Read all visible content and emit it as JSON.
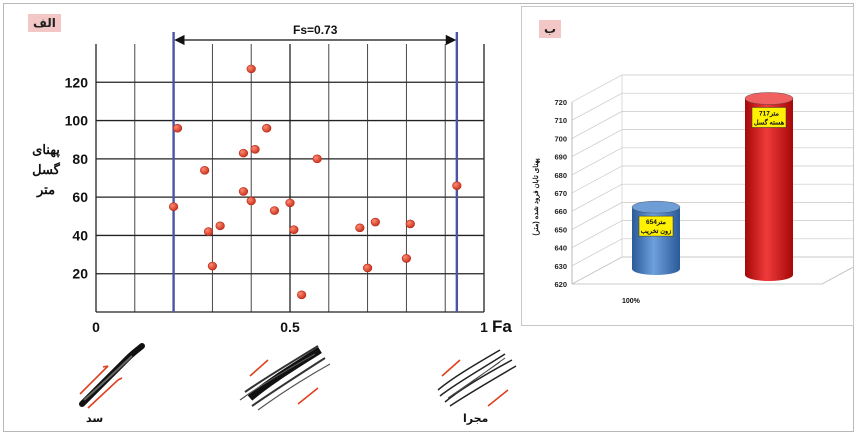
{
  "panel_a_tag": "الف",
  "panel_b_tag": "ب",
  "fs_label": "Fs=0.73",
  "x_axis_label": "Fa",
  "y_axis_label_lines": [
    "پهنای",
    "گسل",
    "متر"
  ],
  "x_tick_labels": [
    "0",
    "0.5",
    "1"
  ],
  "y_tick_labels": [
    "20",
    "40",
    "60",
    "80",
    "100",
    "120"
  ],
  "captions": {
    "left": "سد",
    "right": "مجرا"
  },
  "colors": {
    "points": "#d8402b",
    "fs_lines": "#4a55a8",
    "blue_cyl": "#3f78bf",
    "red_cyl": "#d21414",
    "label_box": "#fff100",
    "tag": "#f4c7c7"
  },
  "chart_data": [
    {
      "type": "scatter",
      "xlabel": "Fa",
      "ylabel": "پهنای گسل متر",
      "xlim": [
        0,
        1.0
      ],
      "ylim": [
        0,
        140
      ],
      "x_ticks": [
        0,
        0.5,
        1
      ],
      "y_ticks": [
        20,
        40,
        60,
        80,
        100,
        120
      ],
      "vlines": [
        0.2,
        0.93
      ],
      "annotation": "Fs=0.73",
      "grid": true,
      "points": [
        {
          "x": 0.2,
          "y": 55
        },
        {
          "x": 0.21,
          "y": 96
        },
        {
          "x": 0.28,
          "y": 74
        },
        {
          "x": 0.29,
          "y": 42
        },
        {
          "x": 0.3,
          "y": 24
        },
        {
          "x": 0.32,
          "y": 45
        },
        {
          "x": 0.38,
          "y": 83
        },
        {
          "x": 0.38,
          "y": 63
        },
        {
          "x": 0.4,
          "y": 58
        },
        {
          "x": 0.4,
          "y": 127
        },
        {
          "x": 0.41,
          "y": 85
        },
        {
          "x": 0.44,
          "y": 96
        },
        {
          "x": 0.46,
          "y": 53
        },
        {
          "x": 0.5,
          "y": 57
        },
        {
          "x": 0.51,
          "y": 43
        },
        {
          "x": 0.53,
          "y": 9
        },
        {
          "x": 0.57,
          "y": 80
        },
        {
          "x": 0.68,
          "y": 44
        },
        {
          "x": 0.7,
          "y": 23
        },
        {
          "x": 0.72,
          "y": 47
        },
        {
          "x": 0.8,
          "y": 28
        },
        {
          "x": 0.81,
          "y": 46
        },
        {
          "x": 0.93,
          "y": 66
        }
      ]
    },
    {
      "type": "bar",
      "style": "3d-cylinder",
      "ylabel": "پهنای تابان فرود شده (متر)",
      "ylim": [
        620,
        720
      ],
      "y_ticks": [
        620,
        630,
        640,
        650,
        660,
        670,
        680,
        690,
        700,
        710,
        720
      ],
      "category_label": "100%",
      "series": [
        {
          "name": "654متر زون تخریب",
          "value": 654,
          "label_lines": [
            "654متر",
            "زون تخریب"
          ]
        },
        {
          "name": "717متر هسته گسل",
          "value": 717,
          "label_lines": [
            "717متر",
            "هسته گسل"
          ]
        }
      ]
    }
  ]
}
